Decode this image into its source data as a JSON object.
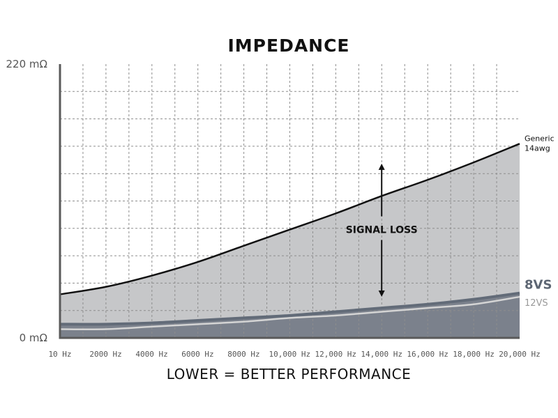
{
  "chart_data": {
    "type": "area",
    "title": "IMPEDANCE",
    "subtitle": "LOWER = BETTER PERFORMANCE",
    "x_tick_labels": [
      "10 Hz",
      "2000 Hz",
      "4000 Hz",
      "6000 Hz",
      "8000 Hz",
      "10,000 Hz",
      "12,000 Hz",
      "14,000 Hz",
      "16,000 Hz",
      "18,000 Hz",
      "20,000 Hz"
    ],
    "x_tick_values": [
      10,
      2000,
      4000,
      6000,
      8000,
      10000,
      12000,
      14000,
      16000,
      18000,
      20000
    ],
    "y_tick_labels": [
      "0 mΩ",
      "220 mΩ"
    ],
    "xlim": [
      10,
      20000
    ],
    "ylim": [
      0,
      220
    ],
    "grid": true,
    "x": [
      10,
      2000,
      4000,
      6000,
      8000,
      10000,
      12000,
      14000,
      16000,
      18000,
      20000
    ],
    "series": [
      {
        "name": "Generic 14awg",
        "values": [
          35,
          41,
          50,
          61,
          74,
          87,
          100,
          114,
          127,
          141,
          156
        ],
        "color": "#111111",
        "fill": "#c6c7c9"
      },
      {
        "name": "8VS",
        "values": [
          11,
          11,
          12,
          14,
          16,
          18,
          21,
          24,
          27,
          31,
          36
        ],
        "color": "#626b78",
        "fill": "#7b818c"
      },
      {
        "name": "12VS",
        "values": [
          7,
          7,
          9,
          11,
          13,
          16,
          18,
          21,
          24,
          27,
          33
        ],
        "color": "#d4d4d4"
      }
    ],
    "annotations": [
      {
        "text": "SIGNAL LOSS",
        "x": 14000,
        "y_from": 33,
        "y_to": 140
      }
    ]
  }
}
